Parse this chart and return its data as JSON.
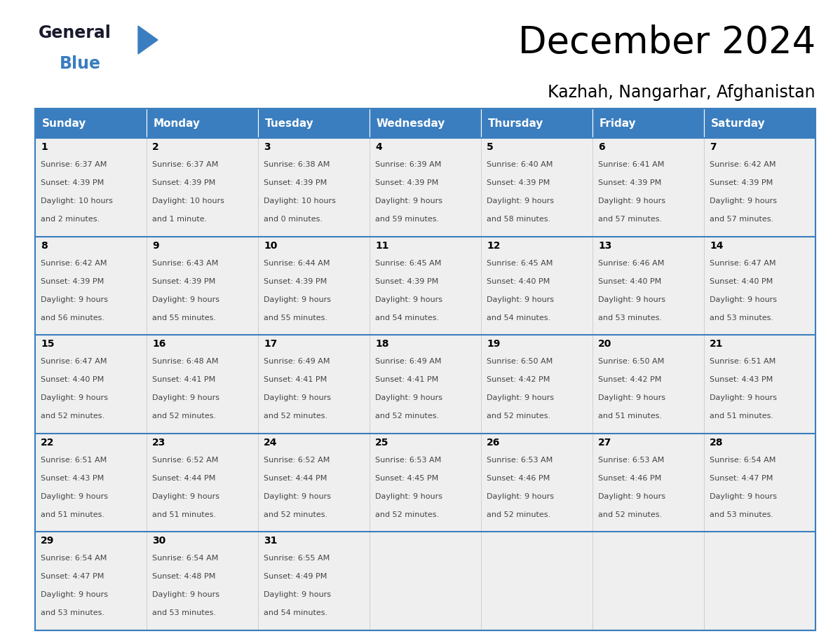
{
  "title": "December 2024",
  "subtitle": "Kazhah, Nangarhar, Afghanistan",
  "header_color": "#3a7ebf",
  "header_text_color": "#ffffff",
  "cell_bg_color": "#efefef",
  "border_color": "#3a7ebf",
  "separator_color": "#3a7ebf",
  "day_headers": [
    "Sunday",
    "Monday",
    "Tuesday",
    "Wednesday",
    "Thursday",
    "Friday",
    "Saturday"
  ],
  "days": [
    {
      "day": 1,
      "col": 0,
      "row": 0,
      "sunrise": "6:37 AM",
      "sunset": "4:39 PM",
      "daylight": "10 hours and 2 minutes."
    },
    {
      "day": 2,
      "col": 1,
      "row": 0,
      "sunrise": "6:37 AM",
      "sunset": "4:39 PM",
      "daylight": "10 hours and 1 minute."
    },
    {
      "day": 3,
      "col": 2,
      "row": 0,
      "sunrise": "6:38 AM",
      "sunset": "4:39 PM",
      "daylight": "10 hours and 0 minutes."
    },
    {
      "day": 4,
      "col": 3,
      "row": 0,
      "sunrise": "6:39 AM",
      "sunset": "4:39 PM",
      "daylight": "9 hours and 59 minutes."
    },
    {
      "day": 5,
      "col": 4,
      "row": 0,
      "sunrise": "6:40 AM",
      "sunset": "4:39 PM",
      "daylight": "9 hours and 58 minutes."
    },
    {
      "day": 6,
      "col": 5,
      "row": 0,
      "sunrise": "6:41 AM",
      "sunset": "4:39 PM",
      "daylight": "9 hours and 57 minutes."
    },
    {
      "day": 7,
      "col": 6,
      "row": 0,
      "sunrise": "6:42 AM",
      "sunset": "4:39 PM",
      "daylight": "9 hours and 57 minutes."
    },
    {
      "day": 8,
      "col": 0,
      "row": 1,
      "sunrise": "6:42 AM",
      "sunset": "4:39 PM",
      "daylight": "9 hours and 56 minutes."
    },
    {
      "day": 9,
      "col": 1,
      "row": 1,
      "sunrise": "6:43 AM",
      "sunset": "4:39 PM",
      "daylight": "9 hours and 55 minutes."
    },
    {
      "day": 10,
      "col": 2,
      "row": 1,
      "sunrise": "6:44 AM",
      "sunset": "4:39 PM",
      "daylight": "9 hours and 55 minutes."
    },
    {
      "day": 11,
      "col": 3,
      "row": 1,
      "sunrise": "6:45 AM",
      "sunset": "4:39 PM",
      "daylight": "9 hours and 54 minutes."
    },
    {
      "day": 12,
      "col": 4,
      "row": 1,
      "sunrise": "6:45 AM",
      "sunset": "4:40 PM",
      "daylight": "9 hours and 54 minutes."
    },
    {
      "day": 13,
      "col": 5,
      "row": 1,
      "sunrise": "6:46 AM",
      "sunset": "4:40 PM",
      "daylight": "9 hours and 53 minutes."
    },
    {
      "day": 14,
      "col": 6,
      "row": 1,
      "sunrise": "6:47 AM",
      "sunset": "4:40 PM",
      "daylight": "9 hours and 53 minutes."
    },
    {
      "day": 15,
      "col": 0,
      "row": 2,
      "sunrise": "6:47 AM",
      "sunset": "4:40 PM",
      "daylight": "9 hours and 52 minutes."
    },
    {
      "day": 16,
      "col": 1,
      "row": 2,
      "sunrise": "6:48 AM",
      "sunset": "4:41 PM",
      "daylight": "9 hours and 52 minutes."
    },
    {
      "day": 17,
      "col": 2,
      "row": 2,
      "sunrise": "6:49 AM",
      "sunset": "4:41 PM",
      "daylight": "9 hours and 52 minutes."
    },
    {
      "day": 18,
      "col": 3,
      "row": 2,
      "sunrise": "6:49 AM",
      "sunset": "4:41 PM",
      "daylight": "9 hours and 52 minutes."
    },
    {
      "day": 19,
      "col": 4,
      "row": 2,
      "sunrise": "6:50 AM",
      "sunset": "4:42 PM",
      "daylight": "9 hours and 52 minutes."
    },
    {
      "day": 20,
      "col": 5,
      "row": 2,
      "sunrise": "6:50 AM",
      "sunset": "4:42 PM",
      "daylight": "9 hours and 51 minutes."
    },
    {
      "day": 21,
      "col": 6,
      "row": 2,
      "sunrise": "6:51 AM",
      "sunset": "4:43 PM",
      "daylight": "9 hours and 51 minutes."
    },
    {
      "day": 22,
      "col": 0,
      "row": 3,
      "sunrise": "6:51 AM",
      "sunset": "4:43 PM",
      "daylight": "9 hours and 51 minutes."
    },
    {
      "day": 23,
      "col": 1,
      "row": 3,
      "sunrise": "6:52 AM",
      "sunset": "4:44 PM",
      "daylight": "9 hours and 51 minutes."
    },
    {
      "day": 24,
      "col": 2,
      "row": 3,
      "sunrise": "6:52 AM",
      "sunset": "4:44 PM",
      "daylight": "9 hours and 52 minutes."
    },
    {
      "day": 25,
      "col": 3,
      "row": 3,
      "sunrise": "6:53 AM",
      "sunset": "4:45 PM",
      "daylight": "9 hours and 52 minutes."
    },
    {
      "day": 26,
      "col": 4,
      "row": 3,
      "sunrise": "6:53 AM",
      "sunset": "4:46 PM",
      "daylight": "9 hours and 52 minutes."
    },
    {
      "day": 27,
      "col": 5,
      "row": 3,
      "sunrise": "6:53 AM",
      "sunset": "4:46 PM",
      "daylight": "9 hours and 52 minutes."
    },
    {
      "day": 28,
      "col": 6,
      "row": 3,
      "sunrise": "6:54 AM",
      "sunset": "4:47 PM",
      "daylight": "9 hours and 53 minutes."
    },
    {
      "day": 29,
      "col": 0,
      "row": 4,
      "sunrise": "6:54 AM",
      "sunset": "4:47 PM",
      "daylight": "9 hours and 53 minutes."
    },
    {
      "day": 30,
      "col": 1,
      "row": 4,
      "sunrise": "6:54 AM",
      "sunset": "4:48 PM",
      "daylight": "9 hours and 53 minutes."
    },
    {
      "day": 31,
      "col": 2,
      "row": 4,
      "sunrise": "6:55 AM",
      "sunset": "4:49 PM",
      "daylight": "9 hours and 54 minutes."
    }
  ],
  "num_rows": 5,
  "num_cols": 7,
  "logo_text_general": "General",
  "logo_text_blue": "Blue",
  "logo_color_general": "#1a1a2e",
  "logo_color_blue": "#3a7ebf",
  "logo_triangle_color": "#3a7ebf",
  "title_fontsize": 38,
  "subtitle_fontsize": 17,
  "header_fontsize": 11,
  "day_num_fontsize": 10,
  "cell_text_fontsize": 8
}
